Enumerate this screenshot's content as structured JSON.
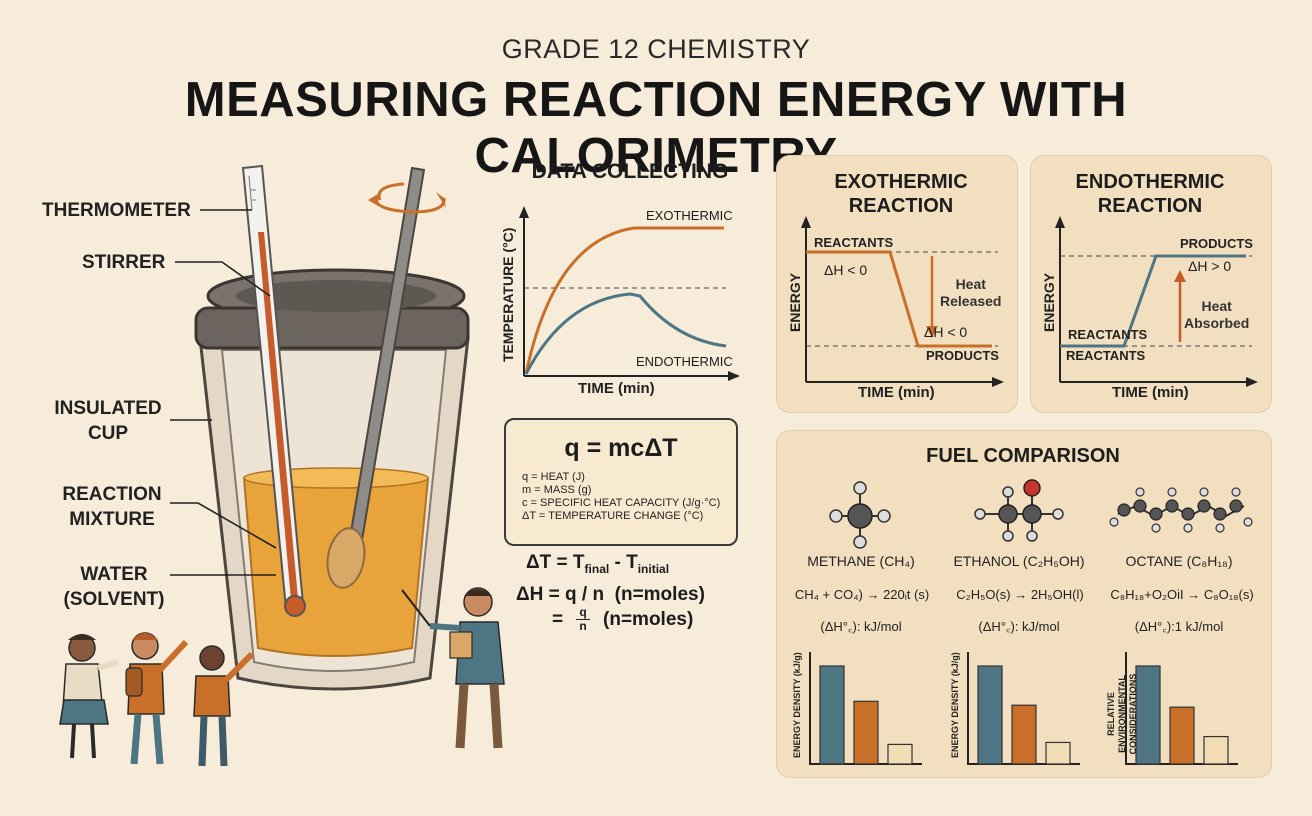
{
  "header": {
    "subtitle": "GRADE 12 CHEMISTRY",
    "title": "MEASURING REACTION ENERGY WITH CALORIMETRY"
  },
  "apparatus": {
    "labels": {
      "thermometer": "THERMOMETER",
      "stirrer": "STIRRER",
      "insulated_cup_1": "INSULATED",
      "insulated_cup_2": "CUP",
      "reaction_mixture_1": "REACTION",
      "reaction_mixture_2": "MIXTURE",
      "water_1": "WATER",
      "water_2": "(SOLVENT)"
    },
    "colors": {
      "liquid": "#e8a33a",
      "lid": "#6b645f",
      "cup": "#e3d6c4"
    }
  },
  "data_collecting": {
    "title": "DATA COLLECTING",
    "ylabel": "TEMPERATURE (°C)",
    "xlabel": "TIME (min)",
    "exo_label": "EXOTHERMIC",
    "endo_label": "ENDOTHERMIC",
    "colors": {
      "exo": "#c8702a",
      "endo": "#4e7583"
    }
  },
  "formula": {
    "main": "q = mcΔT",
    "legend": [
      "q = HEAT (J)",
      "m = MASS (g)",
      "c = SPECIFIC HEAT CAPACITY (J/g·°C)",
      "ΔT = TEMPERATURE CHANGE (°C)"
    ],
    "delta_t": {
      "lhs": "ΔT = T",
      "sub1": "final",
      "mid": " - T",
      "sub2": "initial"
    },
    "delta_h": "ΔH = q / n  (n=moles)",
    "frac_eq": "=",
    "frac_num": "q",
    "frac_den": "n",
    "frac_note": "(n=moles)"
  },
  "exothermic": {
    "title_1": "EXOTHERMIC",
    "title_2": "REACTION",
    "ylabel": "ENERGY",
    "xlabel": "TIME (min)",
    "reactants": "REACTANTS",
    "dh_top": "ΔH < 0",
    "heat_1": "Heat",
    "heat_2": "Released",
    "dh_bottom": "ΔH < 0",
    "products": "PRODUCTS"
  },
  "endothermic": {
    "title_1": "ENDOTHERMIC",
    "title_2": "REACTION",
    "ylabel": "ENERGY",
    "xlabel": "TIME (min)",
    "products": "PRODUCTS",
    "dh": "ΔH > 0",
    "heat_1": "Heat",
    "heat_2": "Absorbed",
    "reactants_1": "REACTANTS",
    "reactants_2": "REACTANTS"
  },
  "fuel": {
    "title": "FUEL COMPARISON",
    "fuels": [
      {
        "name": "METHANE (CH₄)",
        "equation": "CH₄ + CO₄) → 220ᵢt (s)",
        "dh": "(ΔH°꜀): kJ/mol",
        "ylabel": "ENERGY DENSITY (kJ/g)",
        "values": [
          100,
          64,
          20
        ]
      },
      {
        "name": "ETHANOL (C₂H₅OH)",
        "equation": "C₂H₅O(s) → 2H₅OH(l)",
        "dh": "(ΔH°꜀): kJ/mol",
        "ylabel": "ENERGY DENSITY (kJ/g)",
        "values": [
          100,
          60,
          22
        ]
      },
      {
        "name": "OCTANE (C₈H₁₈)",
        "equation": "C₈H₁₈+O₂OiI → C₈O₁₈(s)",
        "dh": "(ΔH°꜀):1 kJ/mol",
        "ylabel": "RELATIVE ENVIRONMENTAL CONSIDERATIONS",
        "values": [
          100,
          58,
          28
        ]
      }
    ],
    "bar_colors": [
      "#4e7583",
      "#c8702a",
      "#f0ddb4"
    ]
  }
}
